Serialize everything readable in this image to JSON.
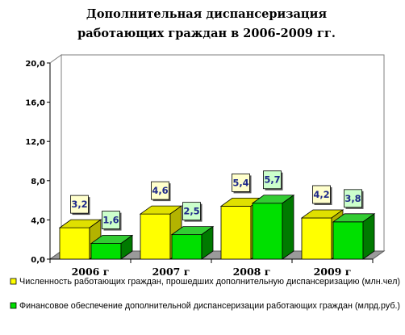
{
  "chart_data": {
    "type": "bar",
    "title": [
      "Дополнительная диспансеризация",
      "работающих граждан в 2006-2009 гг."
    ],
    "categories": [
      "2006 г",
      "2007 г",
      "2008 г",
      "2009 г"
    ],
    "series": [
      {
        "name": "Численность работающих граждан, прошедших дополнительную диспансеризацию (млн.чел)",
        "values": [
          3.2,
          4.6,
          5.4,
          4.2
        ],
        "labels": [
          "3,2",
          "4,6",
          "5,4",
          "4,2"
        ],
        "color": "#ffff00",
        "side": "#b3b300",
        "top": "#e0e000",
        "label_bg": "#ffffcc"
      },
      {
        "name": "Финансовое обеспечение дополнительной диспансеризации работающих граждан (млрд.руб.)",
        "values": [
          1.6,
          2.5,
          5.7,
          3.8
        ],
        "labels": [
          "1,6",
          "2,5",
          "5,7",
          "3,8"
        ],
        "color": "#00e000",
        "side": "#007a00",
        "top": "#33cc33",
        "label_bg": "#ccffcc"
      }
    ],
    "ylim": [
      0,
      20
    ],
    "yticks": [
      0,
      4,
      8,
      12,
      16,
      20
    ],
    "ytick_labels": [
      "0,0",
      "4,0",
      "8,0",
      "12,0",
      "16,0",
      "20,0"
    ],
    "grid": false,
    "legend_position": "bottom"
  }
}
